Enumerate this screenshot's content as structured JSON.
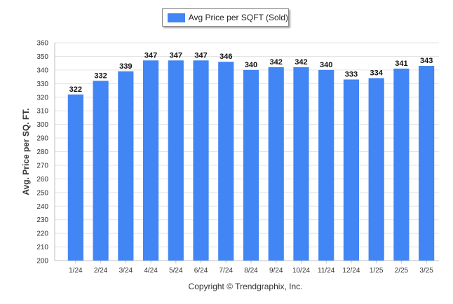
{
  "chart_data": {
    "type": "bar",
    "legend": "Avg Price per SQFT (Sold)",
    "ylabel": "Avg. Price per SQ. FT.",
    "xlabel": "",
    "categories": [
      "1/24",
      "2/24",
      "3/24",
      "4/24",
      "5/24",
      "6/24",
      "7/24",
      "8/24",
      "9/24",
      "10/24",
      "11/24",
      "12/24",
      "1/25",
      "2/25",
      "3/25"
    ],
    "values": [
      322,
      332,
      339,
      347,
      347,
      347,
      346,
      340,
      342,
      342,
      340,
      333,
      334,
      341,
      343
    ],
    "ylim": [
      200,
      360
    ],
    "yticks": [
      200,
      210,
      220,
      230,
      240,
      250,
      260,
      270,
      280,
      290,
      300,
      310,
      320,
      330,
      340,
      350,
      360
    ],
    "grid": true,
    "legend_position": "top-center",
    "bar_color": "#4285f4"
  },
  "footer": {
    "copyright": "Copyright © Trendgraphix, Inc."
  }
}
